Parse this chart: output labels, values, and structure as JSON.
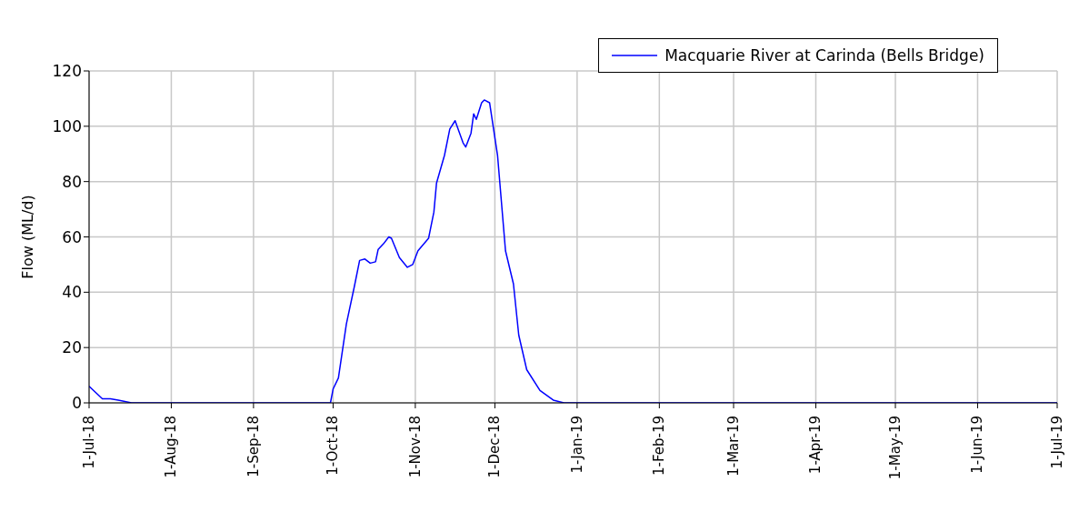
{
  "chart_data": {
    "type": "line",
    "ylabel": "Flow (ML/d)",
    "x": [
      "2018-07-01",
      "2018-07-06",
      "2018-07-09",
      "2018-07-12",
      "2018-07-17",
      "2018-09-30",
      "2018-10-01",
      "2018-10-03",
      "2018-10-06",
      "2018-10-09",
      "2018-10-11",
      "2018-10-13",
      "2018-10-15",
      "2018-10-17",
      "2018-10-18",
      "2018-10-20",
      "2018-10-22",
      "2018-10-23",
      "2018-10-26",
      "2018-10-29",
      "2018-10-31",
      "2018-11-02",
      "2018-11-06",
      "2018-11-08",
      "2018-11-09",
      "2018-11-12",
      "2018-11-14",
      "2018-11-16",
      "2018-11-19",
      "2018-11-20",
      "2018-11-22",
      "2018-11-23",
      "2018-11-24",
      "2018-11-26",
      "2018-11-27",
      "2018-11-29",
      "2018-12-02",
      "2018-12-05",
      "2018-12-08",
      "2018-12-10",
      "2018-12-13",
      "2018-12-18",
      "2018-12-23",
      "2018-12-27",
      "2019-07-01"
    ],
    "series": [
      {
        "name": "Macquarie River at Carinda (Bells Bridge)",
        "color": "#0000ff",
        "values": [
          6,
          1.5,
          1.5,
          1,
          0,
          0,
          5,
          9,
          28.5,
          42,
          51.5,
          52,
          50.5,
          51,
          55.5,
          57.5,
          60,
          59.5,
          52.5,
          49,
          50,
          55,
          59.5,
          69,
          79.5,
          89.5,
          99,
          102,
          94,
          92.5,
          97.5,
          104.5,
          102.5,
          108.5,
          109.5,
          108.5,
          89.5,
          55,
          43,
          24.5,
          12,
          4.5,
          1,
          0,
          0
        ]
      }
    ],
    "xlim": [
      "2018-07-01",
      "2019-07-01"
    ],
    "xticks": [
      {
        "value": "2018-07-01",
        "label": "1-Jul-18"
      },
      {
        "value": "2018-08-01",
        "label": "1-Aug-18"
      },
      {
        "value": "2018-09-01",
        "label": "1-Sep-18"
      },
      {
        "value": "2018-10-01",
        "label": "1-Oct-18"
      },
      {
        "value": "2018-11-01",
        "label": "1-Nov-18"
      },
      {
        "value": "2018-12-01",
        "label": "1-Dec-18"
      },
      {
        "value": "2019-01-01",
        "label": "1-Jan-19"
      },
      {
        "value": "2019-02-01",
        "label": "1-Feb-19"
      },
      {
        "value": "2019-03-01",
        "label": "1-Mar-19"
      },
      {
        "value": "2019-04-01",
        "label": "1-Apr-19"
      },
      {
        "value": "2019-05-01",
        "label": "1-May-19"
      },
      {
        "value": "2019-06-01",
        "label": "1-Jun-19"
      },
      {
        "value": "2019-07-01",
        "label": "1-Jul-19"
      }
    ],
    "ylim": [
      0,
      120
    ],
    "yticks": [
      0,
      20,
      40,
      60,
      80,
      100,
      120
    ],
    "grid": true,
    "legend": "top right",
    "marker": "none",
    "line_style": "solid"
  }
}
